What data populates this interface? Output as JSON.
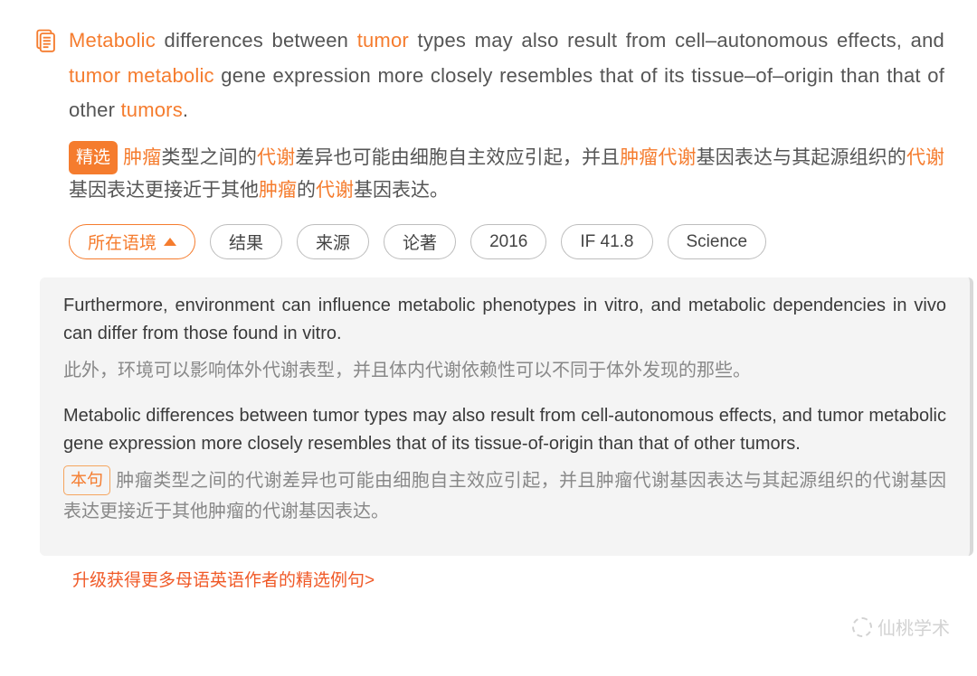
{
  "colors": {
    "accent": "#f57c2e",
    "text": "#555555",
    "muted": "#888888",
    "panel_bg": "#f4f4f4",
    "tag_border": "#bdbdbd",
    "upgrade": "#f05a28"
  },
  "main": {
    "sentence_parts": [
      {
        "t": "Metabolic",
        "hl": true
      },
      {
        "t": " differences between ",
        "hl": false
      },
      {
        "t": "tumor",
        "hl": true
      },
      {
        "t": " types may also result from cell–autonomous effects, and ",
        "hl": false
      },
      {
        "t": "tumor",
        "hl": true
      },
      {
        "t": " ",
        "hl": false
      },
      {
        "t": "metabolic",
        "hl": true
      },
      {
        "t": " gene expression more closely resembles that of its tissue–of–origin than that of other ",
        "hl": false
      },
      {
        "t": "tumors",
        "hl": true
      },
      {
        "t": ".",
        "hl": false
      }
    ],
    "badge": "精选",
    "translation_parts": [
      {
        "t": "肿瘤",
        "hl": true
      },
      {
        "t": "类型之间的",
        "hl": false
      },
      {
        "t": "代谢",
        "hl": true
      },
      {
        "t": "差异也可能由细胞自主效应引起，并且",
        "hl": false
      },
      {
        "t": "肿瘤代谢",
        "hl": true
      },
      {
        "t": "基因表达与其起源组织的",
        "hl": false
      },
      {
        "t": "代谢",
        "hl": true
      },
      {
        "t": "基因表达更接近于其他",
        "hl": false
      },
      {
        "t": "肿瘤",
        "hl": true
      },
      {
        "t": "的",
        "hl": false
      },
      {
        "t": "代谢",
        "hl": true
      },
      {
        "t": "基因表达。",
        "hl": false
      }
    ]
  },
  "tags": [
    {
      "label": "所在语境",
      "active": true,
      "expandable": true
    },
    {
      "label": "结果",
      "active": false
    },
    {
      "label": "来源",
      "active": false
    },
    {
      "label": "论著",
      "active": false
    },
    {
      "label": "2016",
      "active": false
    },
    {
      "label": "IF 41.8",
      "active": false
    },
    {
      "label": "Science",
      "active": false
    }
  ],
  "context": [
    {
      "en": "Furthermore, environment can influence metabolic phenotypes in vitro, and metabolic dependencies in vivo can differ from those found in vitro.",
      "zh": "此外，环境可以影响体外代谢表型，并且体内代谢依赖性可以不同于体外发现的那些。",
      "badge": null
    },
    {
      "en": "Metabolic differences between tumor types may also result from cell-autonomous effects, and tumor metabolic gene expression more closely resembles that of its tissue-of-origin than that of other tumors.",
      "zh": "肿瘤类型之间的代谢差异也可能由细胞自主效应引起，并且肿瘤代谢基因表达与其起源组织的代谢基因表达更接近于其他肿瘤的代谢基因表达。",
      "badge": "本句"
    }
  ],
  "upgrade_text": "升级获得更多母语英语作者的精选例句>",
  "watermark": "仙桃学术"
}
